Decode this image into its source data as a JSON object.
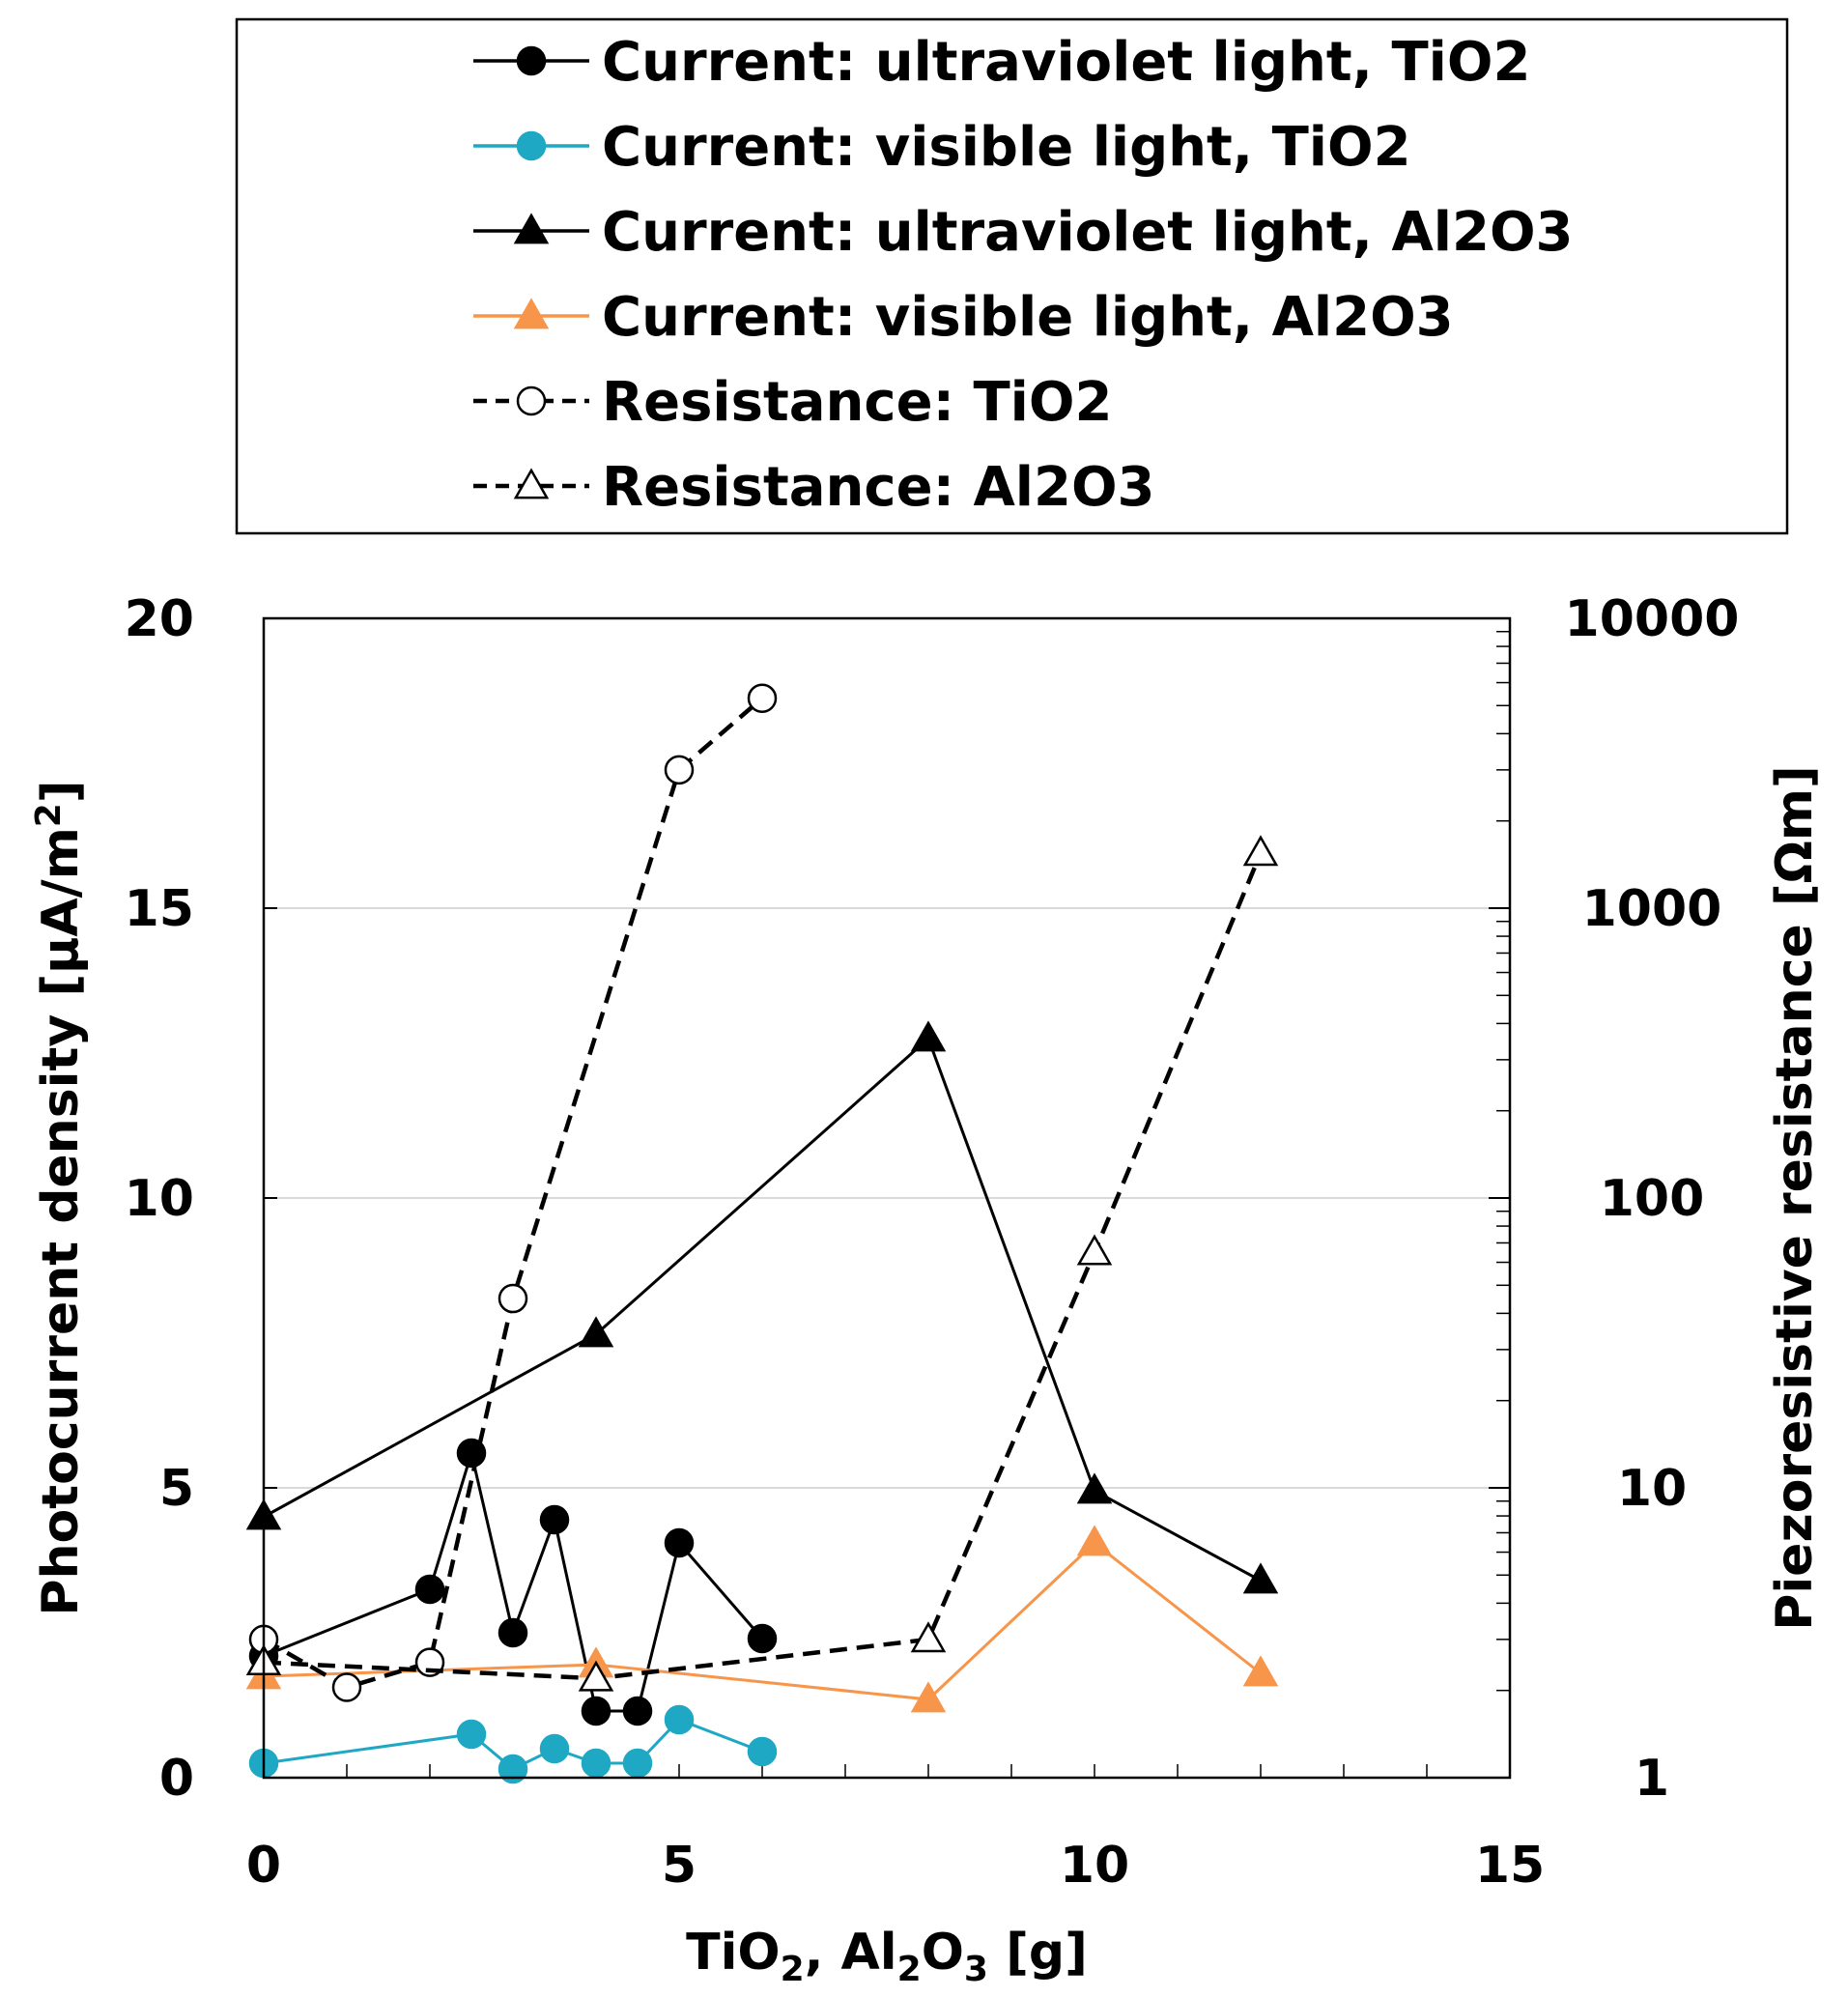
{
  "chart_data": {
    "type": "line",
    "xlabel": {
      "prefix": "TiO",
      "sub1": "2",
      "mid": ", Al",
      "sub2": "2",
      "mid2": "O",
      "sub3": "3",
      "suffix": "   [g]"
    },
    "ylabel_left": {
      "prefix": "Photocurrent density   [µA/m",
      "sup": "2",
      "suffix": "]"
    },
    "ylabel_right": "Piezoresistive resistance   [Ωm]",
    "xlim": [
      0,
      15
    ],
    "ylim_left": [
      0,
      20
    ],
    "ylim_right": [
      1,
      10000
    ],
    "right_axis_scale": "log",
    "x_ticks": [
      "0",
      "5",
      "10",
      "15"
    ],
    "y_left_ticks": [
      "0",
      "5",
      "10",
      "15",
      "20"
    ],
    "y_right_ticks": [
      "1",
      "10",
      "100",
      "1000",
      "10000"
    ],
    "grid": "horizontal",
    "legend_position": "top, above plot",
    "series": [
      {
        "name": "Current: ultraviolet light, TiO2",
        "axis": "left",
        "color": "#000000",
        "marker": "circle",
        "filled": true,
        "dashed": false,
        "x": [
          0,
          2,
          2.5,
          3,
          3.5,
          4,
          4.5,
          5,
          6
        ],
        "y": [
          2.1,
          3.25,
          5.6,
          2.5,
          4.45,
          1.15,
          1.15,
          4.05,
          2.4
        ]
      },
      {
        "name": "Current: visible light, TiO2",
        "axis": "left",
        "color": "#1fa8c4",
        "marker": "circle",
        "filled": true,
        "dashed": false,
        "x": [
          0,
          2.5,
          3,
          3.5,
          4,
          4.5,
          5,
          6
        ],
        "y": [
          0.25,
          0.75,
          0.15,
          0.5,
          0.25,
          0.25,
          1.0,
          0.45
        ]
      },
      {
        "name": "Current: ultraviolet light, Al2O3",
        "axis": "left",
        "color": "#000000",
        "marker": "triangle",
        "filled": true,
        "dashed": false,
        "x": [
          0,
          4,
          8,
          10,
          12
        ],
        "y": [
          4.5,
          7.65,
          12.75,
          4.95,
          3.4
        ]
      },
      {
        "name": "Current: visible light, Al2O3",
        "axis": "left",
        "color": "#f7954a",
        "marker": "triangle",
        "filled": true,
        "dashed": false,
        "x": [
          0,
          4,
          8,
          10,
          12
        ],
        "y": [
          1.75,
          1.95,
          1.35,
          4.05,
          1.8
        ]
      },
      {
        "name": "Resistance: TiO2",
        "axis": "right",
        "color": "#000000",
        "marker": "circle",
        "filled": false,
        "dashed": true,
        "x": [
          0,
          1,
          2,
          3,
          5,
          6
        ],
        "y": [
          3.0,
          2.05,
          2.5,
          45,
          3000,
          5300
        ]
      },
      {
        "name": "Resistance: Al2O3",
        "axis": "right",
        "color": "#000000",
        "marker": "triangle",
        "filled": false,
        "dashed": true,
        "x": [
          0,
          4,
          8,
          10,
          12
        ],
        "y": [
          2.5,
          2.2,
          3.0,
          65,
          1550
        ]
      }
    ]
  }
}
